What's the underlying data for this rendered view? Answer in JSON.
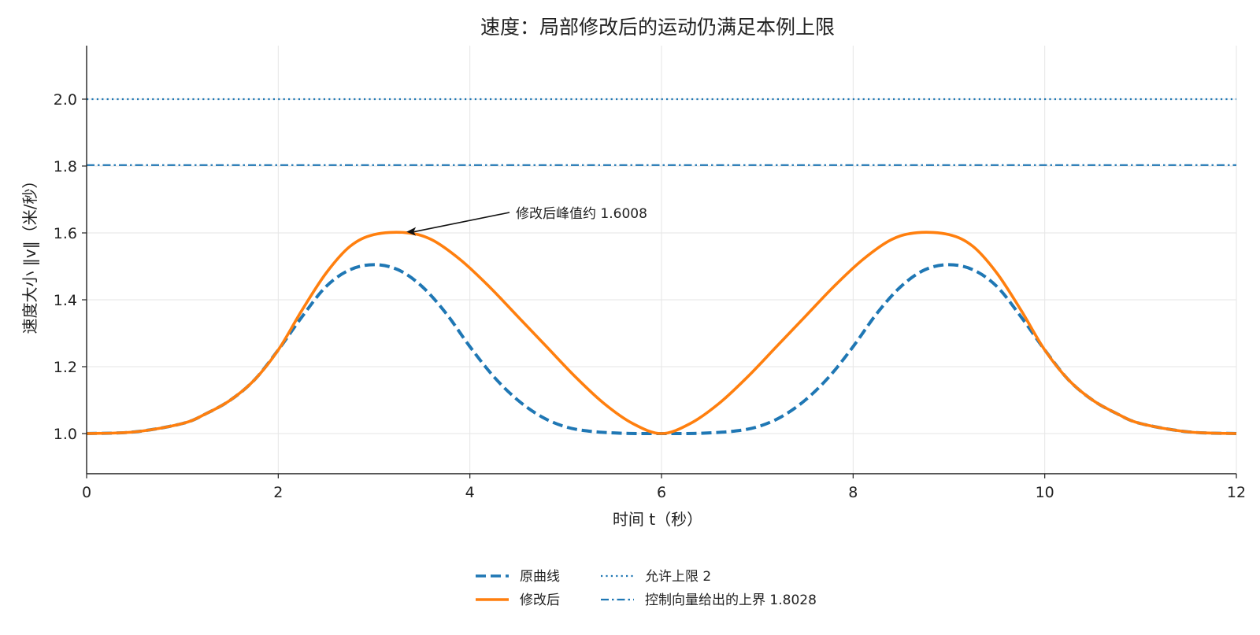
{
  "chart_data": {
    "type": "line",
    "title": "速度：局部修改后的运动仍满足本例上限",
    "xlabel": "时间 t（秒）",
    "ylabel": "速度大小 ‖v‖（米/秒）",
    "xlim": [
      0,
      12
    ],
    "ylim": [
      0.88,
      2.16
    ],
    "x_ticks": [
      "0",
      "2",
      "4",
      "6",
      "8",
      "10",
      "12"
    ],
    "y_ticks": [
      "1.0",
      "1.2",
      "1.4",
      "1.6",
      "1.8",
      "2.0"
    ],
    "grid": true,
    "legend_position": "bottom-center",
    "colors": {
      "blue": "#1f77b4",
      "orange": "#ff7f0e",
      "axis": "#222222",
      "grid": "#e6e6e6"
    },
    "series": [
      {
        "name": "原曲线",
        "style": "dashed",
        "color": "#1f77b4",
        "x": [
          0,
          0.5,
          1,
          1.25,
          1.5,
          1.75,
          2,
          2.25,
          2.5,
          2.75,
          3,
          3.25,
          3.5,
          3.75,
          4,
          4.25,
          4.5,
          4.75,
          5,
          5.25,
          5.5,
          5.75,
          6,
          6.25,
          6.5,
          6.75,
          7,
          7.25,
          7.5,
          7.75,
          8,
          8.25,
          8.5,
          8.75,
          9,
          9.25,
          9.5,
          9.75,
          10,
          10.25,
          10.5,
          10.75,
          11,
          11.5,
          12
        ],
        "y": [
          1.0,
          1.005,
          1.03,
          1.06,
          1.1,
          1.16,
          1.25,
          1.35,
          1.44,
          1.49,
          1.505,
          1.49,
          1.44,
          1.36,
          1.26,
          1.17,
          1.1,
          1.05,
          1.02,
          1.007,
          1.002,
          1.0,
          1.0,
          1.0,
          1.002,
          1.007,
          1.02,
          1.05,
          1.1,
          1.17,
          1.26,
          1.36,
          1.44,
          1.49,
          1.505,
          1.49,
          1.44,
          1.35,
          1.25,
          1.16,
          1.1,
          1.06,
          1.03,
          1.005,
          1.0
        ]
      },
      {
        "name": "修改后",
        "style": "solid",
        "color": "#ff7f0e",
        "x": [
          0,
          0.5,
          1,
          1.25,
          1.5,
          1.75,
          2,
          2.25,
          2.5,
          2.75,
          3,
          3.33,
          3.6,
          3.9,
          4.2,
          4.5,
          4.8,
          5.1,
          5.4,
          5.7,
          6,
          6.3,
          6.6,
          6.9,
          7.2,
          7.5,
          7.8,
          8.1,
          8.4,
          8.67,
          9,
          9.25,
          9.5,
          9.75,
          10,
          10.25,
          10.5,
          10.75,
          11,
          11.5,
          12
        ],
        "y": [
          1.0,
          1.005,
          1.03,
          1.06,
          1.1,
          1.16,
          1.25,
          1.37,
          1.48,
          1.56,
          1.595,
          1.6008,
          1.58,
          1.52,
          1.44,
          1.35,
          1.26,
          1.17,
          1.09,
          1.03,
          1.0,
          1.03,
          1.09,
          1.17,
          1.26,
          1.35,
          1.44,
          1.52,
          1.58,
          1.6008,
          1.595,
          1.56,
          1.48,
          1.37,
          1.25,
          1.16,
          1.1,
          1.06,
          1.03,
          1.005,
          1.0
        ]
      },
      {
        "name": "允许上限 2",
        "style": "dotted",
        "color": "#1f77b4",
        "hline": 2.0
      },
      {
        "name": "控制向量给出的上界 1.8028",
        "style": "dashdot",
        "color": "#1f77b4",
        "hline": 1.8028
      }
    ],
    "annotations": [
      {
        "text": "修改后峰值约 1.6008",
        "x": 3.33,
        "y": 1.6008
      }
    ]
  }
}
